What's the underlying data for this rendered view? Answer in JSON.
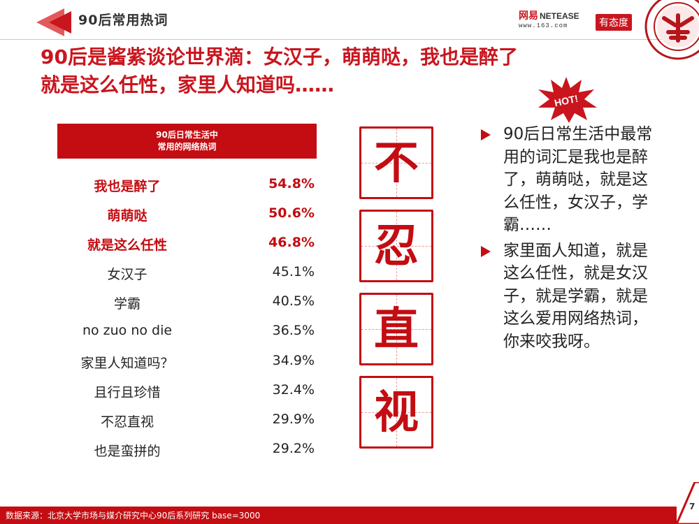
{
  "header": {
    "section_title": "90后常用热词",
    "netease_cn": "网易",
    "netease_en": "NETEASE",
    "netease_url": "www.163.com",
    "youtaidu": "有态度"
  },
  "headline": {
    "line1": "90后是酱紫谈论世界滴：女汉子，萌萌哒，我也是醉了",
    "line2": "就是这么任性，家里人知道吗……"
  },
  "hot_badge": "HOT!",
  "table": {
    "header_line1": "90后日常生活中",
    "header_line2": "常用的网络热词",
    "rows": [
      {
        "term": "我也是醉了",
        "pct": "54.8%",
        "highlight": true
      },
      {
        "term": "萌萌哒",
        "pct": "50.6%",
        "highlight": true
      },
      {
        "term": "就是这么任性",
        "pct": "46.8%",
        "highlight": true
      },
      {
        "term": "女汉子",
        "pct": "45.1%",
        "highlight": false
      },
      {
        "term": "学霸",
        "pct": "40.5%",
        "highlight": false
      },
      {
        "term": "no zuo no  die",
        "pct": "36.5%",
        "highlight": false
      },
      {
        "term": "家里人知道吗？",
        "pct": "34.9%",
        "highlight": false
      },
      {
        "term": "且行且珍惜",
        "pct": "32.4%",
        "highlight": false
      },
      {
        "term": "不忍直视",
        "pct": "29.9%",
        "highlight": false
      },
      {
        "term": "也是蛮拼的",
        "pct": "29.2%",
        "highlight": false
      }
    ]
  },
  "vertical_chars": [
    "不",
    "忍",
    "直",
    "视"
  ],
  "bullets": [
    "90后日常生活中最常用的词汇是我也是醉了，萌萌哒，就是这么任性，女汉子，学霸……",
    "家里面人知道，就是这么任性，就是女汉子，就是学霸，就是这么爱用网络热词，你来咬我呀。"
  ],
  "footer": {
    "source": "数据来源：北京大学市场与媒介研究中心90后系列研究 base=3000",
    "page_number": "7"
  },
  "colors": {
    "accent_red": "#c30d12",
    "headline_red": "#c9151e"
  }
}
